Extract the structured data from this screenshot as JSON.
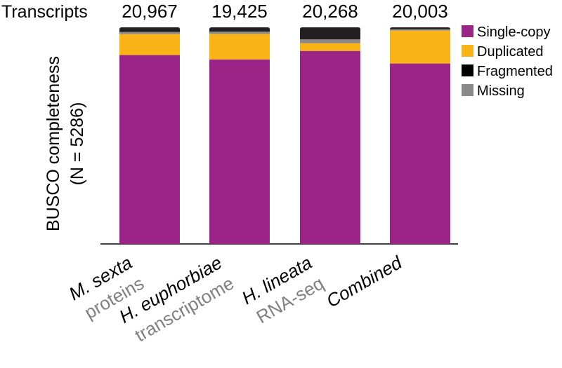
{
  "chart_data": {
    "type": "bar",
    "stacked": true,
    "header_label": "Transcripts",
    "ylabel_line1": "BUSCO completeness",
    "ylabel_line2": "(N = 5286)",
    "categories": [
      {
        "name": "M. sexta",
        "sub": "proteins",
        "count": "20,967"
      },
      {
        "name": "H. euphorbiae",
        "sub": "transcriptome",
        "count": "19,425"
      },
      {
        "name": "H. lineata",
        "sub": "RNA-seq",
        "count": "20,268"
      },
      {
        "name": "Combined",
        "sub": "",
        "count": "20,003"
      }
    ],
    "series": [
      {
        "name": "Single-copy",
        "color": "#9B2587",
        "values": [
          87.2,
          85.2,
          89.1,
          83.3
        ]
      },
      {
        "name": "Duplicated",
        "color": "#FBB417",
        "values": [
          9.7,
          11.8,
          3.6,
          15.2
        ]
      },
      {
        "name": "Missing",
        "color": "#8A8A8A",
        "values": [
          1.0,
          1.0,
          1.7,
          0.6
        ]
      },
      {
        "name": "Fragmented",
        "color": "#231F20",
        "values": [
          2.1,
          2.0,
          5.6,
          0.9
        ]
      }
    ],
    "legend": [
      {
        "name": "Single-copy",
        "color": "#9B2587"
      },
      {
        "name": "Duplicated",
        "color": "#FBB417"
      },
      {
        "name": "Fragmented",
        "color": "#000000"
      },
      {
        "name": "Missing",
        "color": "#8A8A8A"
      }
    ],
    "ylim": [
      0,
      100
    ],
    "grid": false,
    "legend_position": "right"
  }
}
